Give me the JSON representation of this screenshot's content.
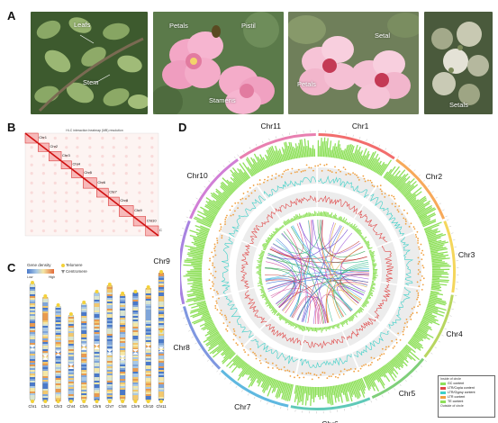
{
  "panels": {
    "a": "A",
    "b": "B",
    "c": "C",
    "d": "D"
  },
  "photo_labels": {
    "leafs": "Leafs",
    "stem": "Stem",
    "petals1": "Petals",
    "pistil": "Pistil",
    "stamens": "Stamens",
    "setal1": "Setal",
    "petals2": "Petals",
    "setals": "Setals"
  },
  "hic": {
    "title": "Hi-C interaction heatmap (MB) resolution",
    "chromosomes": [
      "Chr1",
      "Chr2",
      "Chr3",
      "Chr4",
      "Chr5",
      "Chr6",
      "Chr7",
      "Chr8",
      "Chr9",
      "Chr10",
      "Chr11"
    ]
  },
  "ideogram": {
    "legend_density": "Gene density",
    "legend_low": "Low",
    "legend_high": "High",
    "legend_telomere": "Telomere",
    "legend_centromere": "Centromere",
    "chromosomes": [
      "Chr1",
      "Chr2",
      "Chr3",
      "Chr4",
      "Chr5",
      "Chr6",
      "Chr7",
      "Chr8",
      "Chr9",
      "Chr10",
      "Chr11"
    ]
  },
  "circos": {
    "chromosomes": [
      "Chr1",
      "Chr2",
      "Chr3",
      "Chr4",
      "Chr5",
      "Chr6",
      "Chr7",
      "Chr8",
      "Chr9",
      "Chr10",
      "Chr11"
    ],
    "colors": [
      "#f26d6d",
      "#f7a95a",
      "#f4d65c",
      "#b8d660",
      "#7fcf7a",
      "#5fc9b8",
      "#5fb8e0",
      "#7f97e0",
      "#a883e0",
      "#d17fd6",
      "#e87fb0"
    ],
    "legend": {
      "inside": "Inside of circle",
      "outside": "Outside of circle",
      "items": [
        {
          "label": "GC content",
          "color": "#8ee05a"
        },
        {
          "label": "LTR/Copia content",
          "color": "#e04848"
        },
        {
          "label": "LTR/Gypsy content",
          "color": "#3dd0c8"
        },
        {
          "label": "LTR content",
          "color": "#f0a040"
        },
        {
          "label": "TE content",
          "color": "#8ee05a"
        }
      ]
    }
  }
}
